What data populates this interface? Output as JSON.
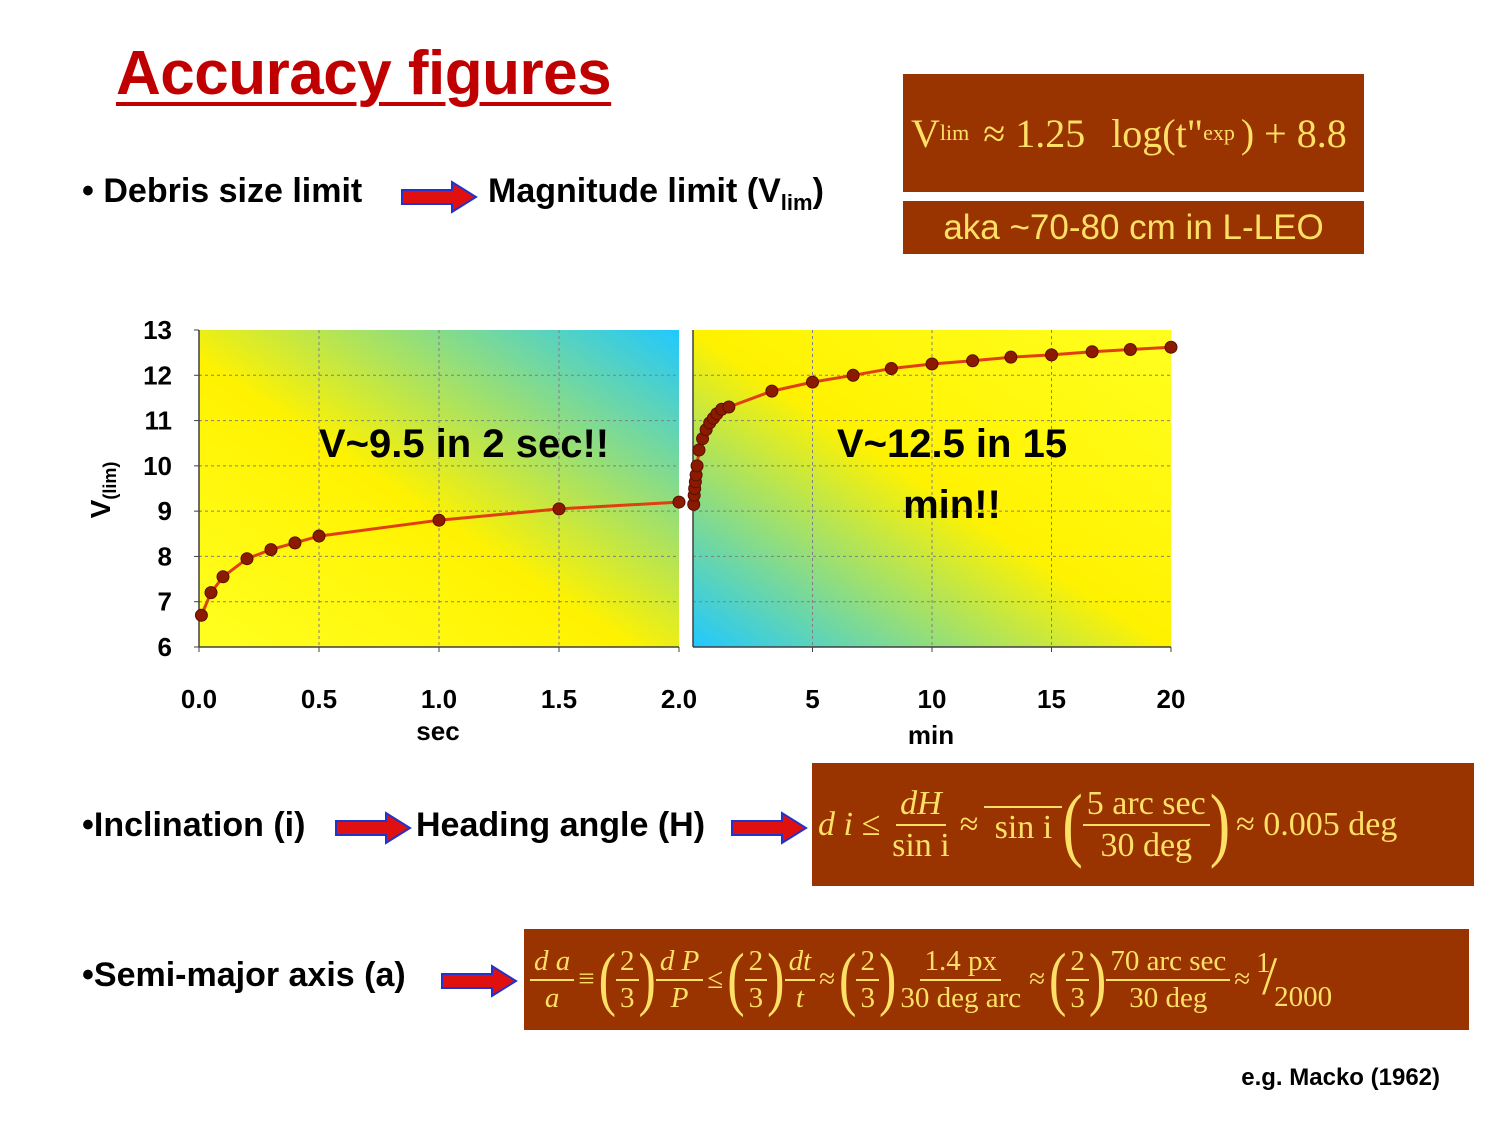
{
  "title": "Accuracy figures",
  "bullets": {
    "b1_left": "• Debris size limit",
    "b1_right": "Magnitude limit (V",
    "b1_sub": "lim",
    "b1_close": ")",
    "b2_left": "•Inclination (i)",
    "b2_right": "Heading angle (H)",
    "b3_left": "•Semi-major axis (a)"
  },
  "formula_vlim": {
    "V": "V",
    "lim": "lim",
    "approx": "≈ 1.25",
    "log": "log(t\"",
    "exp": "exp",
    "tail": ") + 8.8"
  },
  "aka_label": "aka ~70-80 cm in L-LEO",
  "formula_incl": {
    "lhs": "d i ≤",
    "f1_num": "dH",
    "f1_den": "sin  i",
    "approx1": "≈",
    "f2_num": " ",
    "f2_den": "sin  i",
    "f3_num": "5  arc sec",
    "f3_den": "30  deg",
    "result": "≈ 0.005  deg"
  },
  "formula_axis": {
    "f1_num": "d a",
    "f1_den": "a",
    "equiv": "≡",
    "two": "2",
    "three": "3",
    "f2_num": "d P",
    "f2_den": "P",
    "le": "≤",
    "f3_num": "dt",
    "f3_den": "t",
    "approx": "≈",
    "f4_num": "1.4  px",
    "f4_den": "30  deg  arc",
    "f5_num": "70  arc sec",
    "f5_den": "30  deg",
    "one": "1",
    "twothousand": "2000"
  },
  "reference": "e.g. Macko (1962)",
  "colors": {
    "title": "#c00000",
    "box_bg": "#993300",
    "box_text": "#ffe066",
    "curve": "#e04010",
    "dot": "#8b1a00"
  },
  "chart_data": {
    "type": "line",
    "ylabel": "V",
    "ylabel_sub": "(lim)",
    "ylim": [
      6,
      13
    ],
    "yticks": [
      "6",
      "7",
      "8",
      "9",
      "10",
      "11",
      "12",
      "13"
    ],
    "panels": [
      {
        "xlabel": "sec",
        "xlim": [
          0,
          2
        ],
        "xticks": [
          "0.0",
          "0.5",
          "1.0",
          "1.5",
          "2.0"
        ],
        "xtick_values": [
          0,
          0.5,
          1.0,
          1.5,
          2.0
        ],
        "annotation": "V~9.5 in 2 sec!!",
        "points": [
          [
            0.01,
            6.7
          ],
          [
            0.05,
            7.2
          ],
          [
            0.1,
            7.55
          ],
          [
            0.2,
            7.95
          ],
          [
            0.3,
            8.15
          ],
          [
            0.4,
            8.3
          ],
          [
            0.5,
            8.45
          ],
          [
            1.0,
            8.8
          ],
          [
            1.5,
            9.05
          ],
          [
            2.0,
            9.2
          ]
        ]
      },
      {
        "xlabel": "min",
        "xlim": [
          0,
          20
        ],
        "xticks": [
          "5",
          "10",
          "15",
          "20"
        ],
        "xtick_values": [
          5,
          10,
          15,
          20
        ],
        "annotation_line1": "V~12.5 in 15",
        "annotation_line2": "min!!",
        "points": [
          [
            0.03,
            9.15
          ],
          [
            0.05,
            9.35
          ],
          [
            0.07,
            9.5
          ],
          [
            0.1,
            9.65
          ],
          [
            0.13,
            9.8
          ],
          [
            0.17,
            10.0
          ],
          [
            0.25,
            10.35
          ],
          [
            0.4,
            10.6
          ],
          [
            0.55,
            10.8
          ],
          [
            0.7,
            10.95
          ],
          [
            0.85,
            11.05
          ],
          [
            1.0,
            11.15
          ],
          [
            1.2,
            11.25
          ],
          [
            1.5,
            11.3
          ],
          [
            3.3,
            11.65
          ],
          [
            5.0,
            11.85
          ],
          [
            6.7,
            12.0
          ],
          [
            8.3,
            12.15
          ],
          [
            10.0,
            12.25
          ],
          [
            11.7,
            12.32
          ],
          [
            13.3,
            12.4
          ],
          [
            15.0,
            12.45
          ],
          [
            16.7,
            12.52
          ],
          [
            18.3,
            12.57
          ],
          [
            20.0,
            12.62
          ]
        ]
      }
    ]
  }
}
